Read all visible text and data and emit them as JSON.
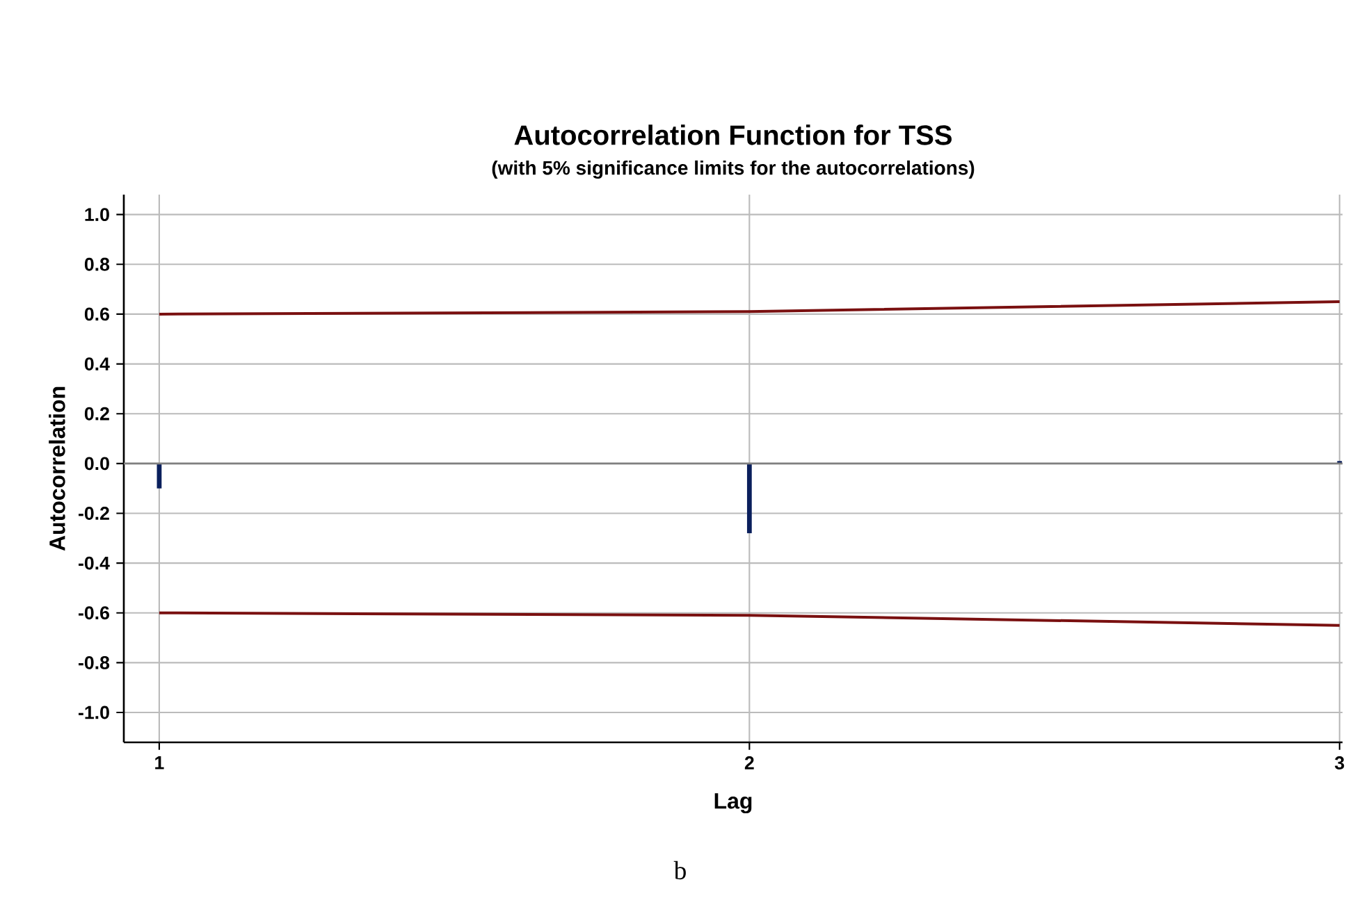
{
  "chart_data": {
    "type": "bar",
    "title": "Autocorrelation Function for TSS",
    "subtitle": "(with 5% significance limits for the autocorrelations)",
    "xlabel": "Lag",
    "ylabel": "Autocorrelation",
    "annotations": [
      "b"
    ],
    "x": [
      1,
      2,
      3
    ],
    "series": [
      {
        "color": "#0a1f5c",
        "values": [
          -0.1,
          -0.28,
          0.01
        ]
      },
      {
        "type": "line",
        "color": "#7a1010",
        "values": [
          0.6,
          0.61,
          0.65
        ]
      },
      {
        "type": "line",
        "color": "#7a1010",
        "values": [
          -0.6,
          -0.61,
          -0.65
        ]
      }
    ],
    "xlim": [
      0.94,
      3.005
    ],
    "ylim": [
      -1.12,
      1.08
    ],
    "xticks": [
      1,
      2,
      3
    ],
    "yticks": [
      {
        "value": -1.0,
        "label": "-1.0"
      },
      {
        "value": -0.8,
        "label": "-0.8"
      },
      {
        "value": -0.6,
        "label": "-0.6"
      },
      {
        "value": -0.4,
        "label": "-0.4"
      },
      {
        "value": -0.2,
        "label": "-0.2"
      },
      {
        "value": 0.0,
        "label": "0.0"
      },
      {
        "value": 0.2,
        "label": "0.2"
      },
      {
        "value": 0.4,
        "label": "0.4"
      },
      {
        "value": 0.6,
        "label": "0.6"
      },
      {
        "value": 0.8,
        "label": "0.8"
      },
      {
        "value": 1.0,
        "label": "1.0"
      }
    ],
    "grid": true
  }
}
